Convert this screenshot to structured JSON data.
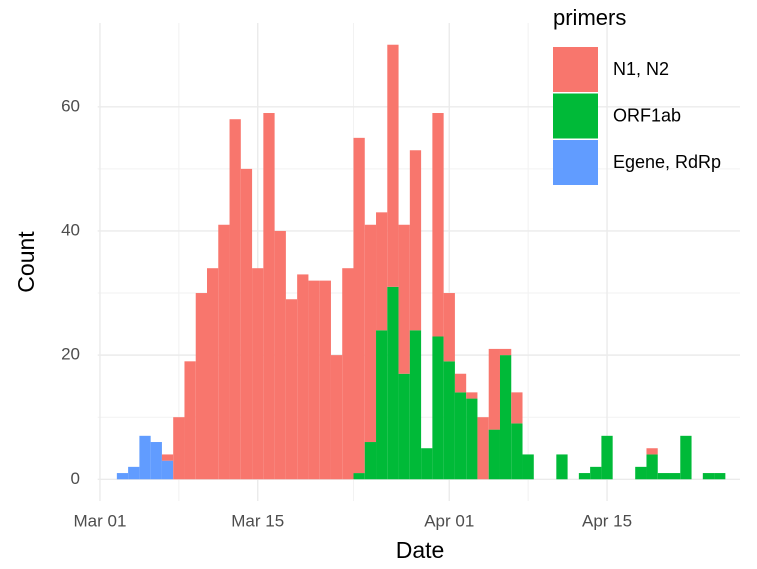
{
  "chart_data": {
    "type": "histogram",
    "x_label": "Date",
    "y_label": "Count",
    "legend_title": "primers",
    "legend_position": "top-right",
    "grid": true,
    "stacked": true,
    "bins": [
      1.5,
      2.5,
      3.5,
      4.5,
      5.5,
      6.5,
      7.5,
      8.5,
      9.5,
      10.5,
      11.5,
      12.5,
      13.5,
      14.5,
      15.5,
      16.5,
      17.5,
      18.5,
      19.5,
      20.5,
      21.5,
      22.5,
      23.5,
      24.5,
      25.5,
      26.5,
      27.5,
      28.5,
      29.5,
      30.5,
      31.5,
      32.5,
      33.5,
      34.5,
      35.5,
      36.5,
      37.5,
      38.5,
      39.5,
      40.5,
      41.5,
      42.5,
      43.5,
      44.5,
      45.5,
      46.5,
      47.5,
      48.5,
      49.5,
      50.5,
      51.5,
      52.5,
      53.5,
      54.5,
      55.5
    ],
    "series": [
      {
        "name": "N1, N2",
        "color": "#F8766D",
        "values": [
          0,
          0,
          0,
          0,
          1,
          10,
          19,
          30,
          34,
          41,
          58,
          50,
          34,
          59,
          40,
          29,
          33,
          32,
          32,
          20,
          34,
          54,
          35,
          19,
          39,
          24,
          29,
          0,
          36,
          11,
          3,
          1,
          10,
          13,
          1,
          5,
          0,
          0,
          0,
          0,
          0,
          0,
          0,
          0,
          0,
          0,
          0,
          1,
          0,
          0,
          0,
          0,
          0,
          0
        ]
      },
      {
        "name": "ORF1ab",
        "color": "#00BA38",
        "values": [
          0,
          0,
          0,
          0,
          0,
          0,
          0,
          0,
          0,
          0,
          0,
          0,
          0,
          0,
          0,
          0,
          0,
          0,
          0,
          0,
          0,
          1,
          6,
          24,
          31,
          17,
          24,
          5,
          23,
          19,
          14,
          13,
          0,
          8,
          20,
          9,
          4,
          0,
          0,
          4,
          0,
          1,
          2,
          7,
          0,
          0,
          2,
          4,
          1,
          1,
          7,
          0,
          1,
          1
        ]
      },
      {
        "name": "Egene, RdRp",
        "color": "#619CFF",
        "values": [
          1,
          2,
          7,
          6,
          3,
          0,
          0,
          0,
          0,
          0,
          0,
          0,
          0,
          0,
          0,
          0,
          0,
          0,
          0,
          0,
          0,
          0,
          0,
          0,
          0,
          0,
          0,
          0,
          0,
          0,
          0,
          0,
          0,
          0,
          0,
          0,
          0,
          0,
          0,
          0,
          0,
          0,
          0,
          0,
          0,
          0,
          0,
          0,
          0,
          0,
          0,
          0,
          0,
          0
        ]
      }
    ],
    "xlim": [
      -0.2,
      56.8
    ],
    "xticks": [
      {
        "value": 0,
        "label": "Mar 01"
      },
      {
        "value": 14,
        "label": "Mar 15"
      },
      {
        "value": 31,
        "label": "Apr 01"
      },
      {
        "value": 45,
        "label": "Apr 15"
      }
    ],
    "ylim": [
      -3.5,
      73.5
    ],
    "yticks": [
      0,
      20,
      40,
      60
    ]
  }
}
